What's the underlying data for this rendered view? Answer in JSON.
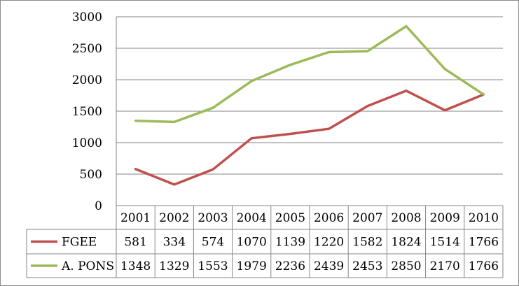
{
  "chart_data": {
    "type": "line",
    "title": "",
    "xlabel": "",
    "ylabel": "",
    "ylim": [
      0,
      3000
    ],
    "yticks": [
      0,
      500,
      1000,
      1500,
      2000,
      2500,
      3000
    ],
    "grid": true,
    "legend": "data-table-left",
    "categories": [
      "2001",
      "2002",
      "2003",
      "2004",
      "2005",
      "2006",
      "2007",
      "2008",
      "2009",
      "2010"
    ],
    "series": [
      {
        "name": "FGEE",
        "color": "#c0504d",
        "values": [
          581,
          334,
          574,
          1070,
          1139,
          1220,
          1582,
          1824,
          1514,
          1766
        ]
      },
      {
        "name": "A. PONS",
        "color": "#9bbb59",
        "values": [
          1348,
          1329,
          1553,
          1979,
          2236,
          2439,
          2453,
          2850,
          2170,
          1766
        ]
      }
    ]
  }
}
